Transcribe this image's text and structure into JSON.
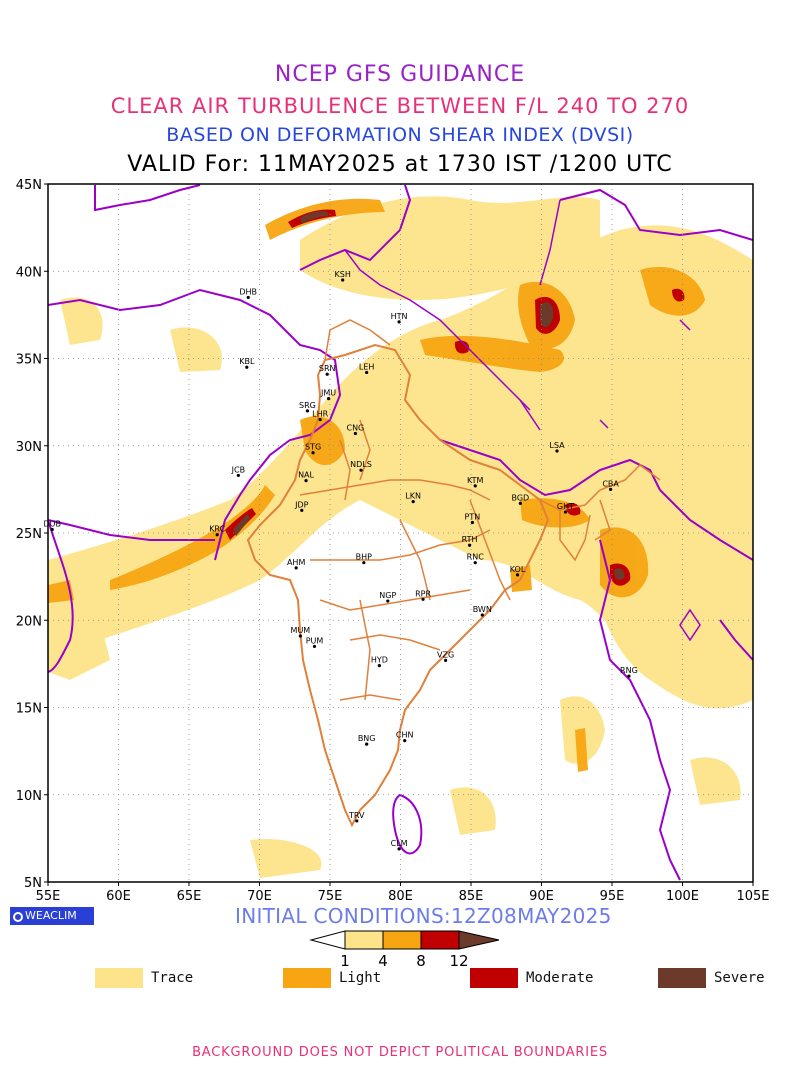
{
  "titles": {
    "line1": "NCEP GFS GUIDANCE",
    "line2": "CLEAR AIR TURBULENCE BETWEEN F/L 240 TO 270",
    "line3": "BASED ON DEFORMATION SHEAR INDEX (DVSI)",
    "line4": "VALID For: 11MAY2025 at 1730 IST /1200 UTC"
  },
  "map": {
    "lon_ticks": [
      "55E",
      "60E",
      "65E",
      "70E",
      "75E",
      "80E",
      "85E",
      "90E",
      "95E",
      "100E",
      "105E"
    ],
    "lat_ticks": [
      "5N",
      "10N",
      "15N",
      "20N",
      "25N",
      "30N",
      "35N",
      "40N",
      "45N"
    ],
    "lon_range": [
      55,
      105
    ],
    "lat_range": [
      5,
      45
    ],
    "grid": true,
    "stations": [
      {
        "code": "DHB",
        "lon": 69.2,
        "lat": 38.5
      },
      {
        "code": "KSH",
        "lon": 75.9,
        "lat": 39.5
      },
      {
        "code": "HTN",
        "lon": 79.9,
        "lat": 37.1
      },
      {
        "code": "KBL",
        "lon": 69.1,
        "lat": 34.5
      },
      {
        "code": "SRN",
        "lon": 74.8,
        "lat": 34.1
      },
      {
        "code": "LEH",
        "lon": 77.6,
        "lat": 34.2
      },
      {
        "code": "JMU",
        "lon": 74.9,
        "lat": 32.7
      },
      {
        "code": "SRG",
        "lon": 73.4,
        "lat": 32.0
      },
      {
        "code": "LHR",
        "lon": 74.3,
        "lat": 31.5
      },
      {
        "code": "CNG",
        "lon": 76.8,
        "lat": 30.7
      },
      {
        "code": "STG",
        "lon": 73.8,
        "lat": 29.6
      },
      {
        "code": "LSA",
        "lon": 91.1,
        "lat": 29.7
      },
      {
        "code": "JCB",
        "lon": 68.5,
        "lat": 28.3
      },
      {
        "code": "NAL",
        "lon": 73.3,
        "lat": 28.0
      },
      {
        "code": "NDLS",
        "lon": 77.2,
        "lat": 28.6
      },
      {
        "code": "KTM",
        "lon": 85.3,
        "lat": 27.7
      },
      {
        "code": "CBA",
        "lon": 94.9,
        "lat": 27.5
      },
      {
        "code": "BGD",
        "lon": 88.5,
        "lat": 26.7
      },
      {
        "code": "GHT",
        "lon": 91.7,
        "lat": 26.2
      },
      {
        "code": "JDP",
        "lon": 73.0,
        "lat": 26.3
      },
      {
        "code": "LKN",
        "lon": 80.9,
        "lat": 26.8
      },
      {
        "code": "PTN",
        "lon": 85.1,
        "lat": 25.6
      },
      {
        "code": "DUB",
        "lon": 55.3,
        "lat": 25.2
      },
      {
        "code": "KRC",
        "lon": 67.0,
        "lat": 24.9
      },
      {
        "code": "RTH",
        "lon": 84.9,
        "lat": 24.3
      },
      {
        "code": "RNC",
        "lon": 85.3,
        "lat": 23.3
      },
      {
        "code": "BHP",
        "lon": 77.4,
        "lat": 23.3
      },
      {
        "code": "AHM",
        "lon": 72.6,
        "lat": 23.0
      },
      {
        "code": "KOL",
        "lon": 88.3,
        "lat": 22.6
      },
      {
        "code": "NGP",
        "lon": 79.1,
        "lat": 21.1
      },
      {
        "code": "RPR",
        "lon": 81.6,
        "lat": 21.2
      },
      {
        "code": "BWN",
        "lon": 85.8,
        "lat": 20.3
      },
      {
        "code": "MUM",
        "lon": 72.9,
        "lat": 19.1
      },
      {
        "code": "HYD",
        "lon": 78.5,
        "lat": 17.4
      },
      {
        "code": "VZG",
        "lon": 83.2,
        "lat": 17.7
      },
      {
        "code": "RNG",
        "lon": 96.2,
        "lat": 16.8
      },
      {
        "code": "PUM",
        "lon": 73.9,
        "lat": 18.5
      },
      {
        "code": "CHN",
        "lon": 80.3,
        "lat": 13.1
      },
      {
        "code": "BNG",
        "lon": 77.6,
        "lat": 12.9
      },
      {
        "code": "TRV",
        "lon": 76.9,
        "lat": 8.5
      },
      {
        "code": "CLM",
        "lon": 79.9,
        "lat": 6.9
      }
    ]
  },
  "badge": {
    "label": "WEACLIM"
  },
  "initial_conditions": "INITIAL CONDITIONS:12Z08MAY2025",
  "colorbar": {
    "ticks": [
      "1",
      "4",
      "8",
      "12"
    ],
    "colors": [
      "#ffffff",
      "#fde48a",
      "#f7a512",
      "#c00000",
      "#6b3a2a"
    ]
  },
  "legend": [
    {
      "label": "Trace",
      "color": "#fde48a"
    },
    {
      "label": "Light",
      "color": "#f7a512"
    },
    {
      "label": "Moderate",
      "color": "#c00000"
    },
    {
      "label": "Severe",
      "color": "#6b3a2a"
    }
  ],
  "disclaimer": "BACKGROUND DOES NOT DEPICT POLITICAL BOUNDARIES"
}
